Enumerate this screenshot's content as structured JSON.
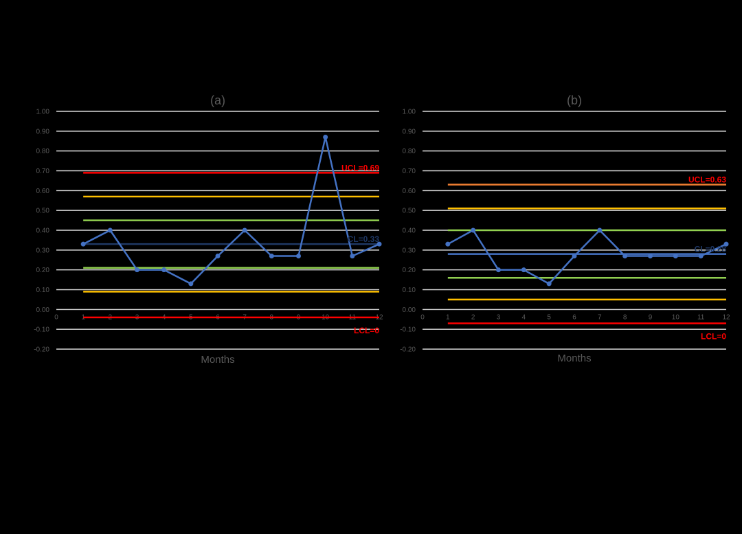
{
  "chart_data": [
    {
      "type": "line",
      "title": "(a)",
      "xlabel": "Months",
      "ylabel": "",
      "x": [
        1,
        2,
        3,
        4,
        5,
        6,
        7,
        8,
        9,
        10,
        11,
        12
      ],
      "xlim": [
        0,
        12
      ],
      "ylim": [
        -0.2,
        1.0
      ],
      "y_ticks": [
        "1.00",
        "0.90",
        "0.80",
        "0.70",
        "0.60",
        "0.50",
        "0.40",
        "0.30",
        "0.20",
        "0.10",
        "0.00",
        "-0.10",
        "-0.20"
      ],
      "x_ticks": [
        "0",
        "1",
        "2",
        "3",
        "4",
        "5",
        "6",
        "7",
        "8",
        "9",
        "10",
        "11",
        "12"
      ],
      "grid": true,
      "series": [
        {
          "values": [
            0.33,
            0.4,
            0.2,
            0.2,
            0.13,
            0.27,
            0.4,
            0.27,
            0.27,
            0.87,
            0.27,
            0.33
          ],
          "color": "#4472C4"
        }
      ],
      "control_lines": [
        {
          "y": 0.69,
          "color": "#FF0000",
          "label": "UCL=0.69"
        },
        {
          "y": 0.57,
          "color": "#FFC000",
          "label": ""
        },
        {
          "y": 0.45,
          "color": "#92D050",
          "label": ""
        },
        {
          "y": 0.33,
          "color": "#1F3864",
          "label": "CL=0.33"
        },
        {
          "y": 0.21,
          "color": "#92D050",
          "label": ""
        },
        {
          "y": 0.09,
          "color": "#FFC000",
          "label": ""
        },
        {
          "y": -0.04,
          "color": "#FF0000",
          "label": "LCL=0"
        }
      ]
    },
    {
      "type": "line",
      "title": "(b)",
      "xlabel": "Months",
      "ylabel": "",
      "x": [
        1,
        2,
        3,
        4,
        5,
        6,
        7,
        8,
        9,
        10,
        11,
        12
      ],
      "xlim": [
        0,
        12
      ],
      "ylim": [
        -0.2,
        1.0
      ],
      "y_ticks": [
        "1.00",
        "0.90",
        "0.80",
        "0.70",
        "0.60",
        "0.50",
        "0.40",
        "0.30",
        "0.20",
        "0.10",
        "0.00",
        "-0.10",
        "-0.20"
      ],
      "x_ticks": [
        "0",
        "1",
        "2",
        "3",
        "4",
        "5",
        "6",
        "7",
        "8",
        "9",
        "10",
        "11",
        "12"
      ],
      "grid": true,
      "series": [
        {
          "values": [
            0.33,
            0.4,
            0.2,
            0.2,
            0.13,
            0.27,
            0.4,
            0.27,
            0.27,
            0.27,
            0.27,
            0.33
          ],
          "color": "#4472C4"
        }
      ],
      "control_lines": [
        {
          "y": 0.63,
          "color": "#ED7D31",
          "label": "UCL=0.63"
        },
        {
          "y": 0.51,
          "color": "#FFC000",
          "label": ""
        },
        {
          "y": 0.4,
          "color": "#92D050",
          "label": ""
        },
        {
          "y": 0.28,
          "color": "#4472C4",
          "label": "CL=0.28"
        },
        {
          "y": 0.16,
          "color": "#92D050",
          "label": ""
        },
        {
          "y": 0.05,
          "color": "#FFC000",
          "label": ""
        },
        {
          "y": -0.07,
          "color": "#FF0000",
          "label": "LCL=0"
        }
      ]
    }
  ],
  "colors": {
    "background": "#000000",
    "gridline": "#D9D9D9",
    "tick_text": "#595959",
    "axis_title_text": "#595959",
    "ucl_label": "#FF0000",
    "lcl_label": "#FF0000",
    "cl_label": "#1F3864"
  }
}
